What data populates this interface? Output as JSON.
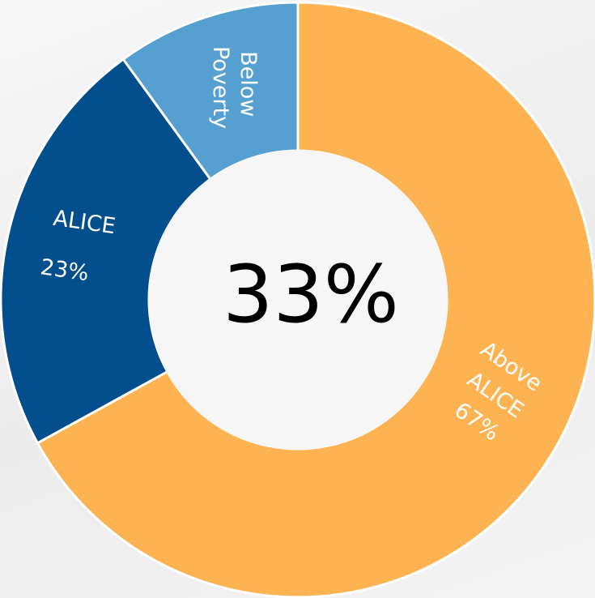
{
  "chart_data": {
    "type": "donut",
    "categories": [
      "Above ALICE",
      "ALICE",
      "Below Poverty"
    ],
    "values": [
      67,
      23,
      10
    ],
    "value_labels": [
      "67%",
      "23%",
      null
    ],
    "colors": [
      "#fdb352",
      "#034f8e",
      "#559fd1"
    ],
    "center_label": "33%"
  }
}
